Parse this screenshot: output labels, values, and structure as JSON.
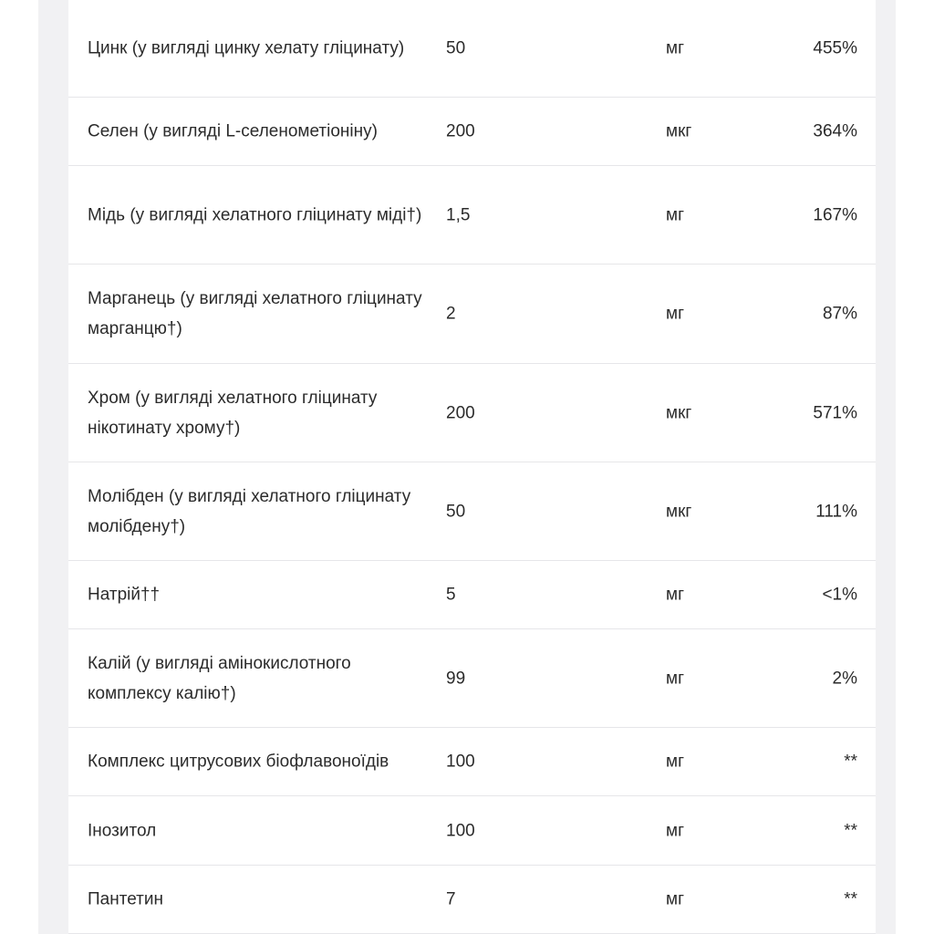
{
  "colors": {
    "background": "#ffffff",
    "side_panel": "#f1f1f3",
    "row_border": "#e6e6e9",
    "text": "#2b2b2b"
  },
  "rows": [
    {
      "name": "Цинк (у вигляді цинку хелату гліцинату)",
      "amount": "50",
      "unit": "мг",
      "dv": "455%"
    },
    {
      "name": "Селен (у вигляді L-селенометіоніну)",
      "amount": "200",
      "unit": "мкг",
      "dv": "364%"
    },
    {
      "name": "Мідь (у вигляді хелатного гліцинату міді†)",
      "amount": "1,5",
      "unit": "мг",
      "dv": "167%"
    },
    {
      "name": "Марганець (у вигляді хелатного гліцинату марганцю†)",
      "amount": "2",
      "unit": "мг",
      "dv": "87%"
    },
    {
      "name": "Хром (у вигляді хелатного гліцинату нікотинату хрому†)",
      "amount": "200",
      "unit": "мкг",
      "dv": "571%"
    },
    {
      "name": "Молібден (у вигляді хелатного гліцинату молібдену†)",
      "amount": "50",
      "unit": "мкг",
      "dv": "111%"
    },
    {
      "name": "Натрій††",
      "amount": "5",
      "unit": "мг",
      "dv": "<1%"
    },
    {
      "name": "Калій (у вигляді амінокислотного комплексу калію†)",
      "amount": "99",
      "unit": "мг",
      "dv": "2%"
    },
    {
      "name": "Комплекс цитрусових біофлавоноїдів",
      "amount": "100",
      "unit": "мг",
      "dv": "**"
    },
    {
      "name": "Інозитол",
      "amount": "100",
      "unit": "мг",
      "dv": "**"
    },
    {
      "name": "Пантетин",
      "amount": "7",
      "unit": "мг",
      "dv": "**"
    }
  ]
}
